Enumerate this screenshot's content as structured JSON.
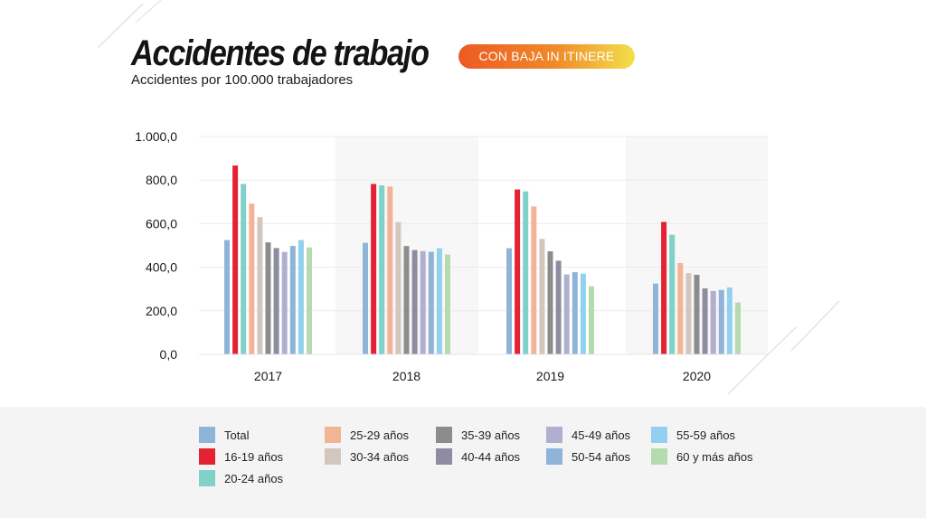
{
  "header": {
    "title": "Accidentes de trabajo",
    "badge": "CON BAJA IN ITINERE",
    "subtitle": "Accidentes por 100.000 trabajadores"
  },
  "colors": {
    "badge_gradient_start": "#ec5a24",
    "badge_gradient_end": "#f3e04a",
    "band": "#f7f7f7",
    "legend_background": "#f4f4f4"
  },
  "chart_data": {
    "type": "bar",
    "title": "",
    "xlabel": "",
    "ylabel": "",
    "ylim": [
      0,
      1000
    ],
    "yticks": [
      0,
      200,
      400,
      600,
      800,
      1000
    ],
    "ytick_labels": [
      "0,0",
      "200,0",
      "400,0",
      "600,0",
      "800,0",
      "1.000,0"
    ],
    "grid": true,
    "legend_position": "bottom",
    "categories": [
      "2017",
      "2018",
      "2019",
      "2020"
    ],
    "series": [
      {
        "name": "Total",
        "color": "#8fb4d8",
        "values": [
          525,
          512,
          487,
          325
        ]
      },
      {
        "name": "16-19 años",
        "color": "#e42332",
        "values": [
          867,
          782,
          757,
          608
        ]
      },
      {
        "name": "20-24 años",
        "color": "#7fd1c9",
        "values": [
          782,
          776,
          748,
          549
        ]
      },
      {
        "name": "25-29 años",
        "color": "#f3b397",
        "values": [
          692,
          770,
          679,
          419
        ]
      },
      {
        "name": "30-34 años",
        "color": "#d3c6bd",
        "values": [
          630,
          607,
          530,
          373
        ]
      },
      {
        "name": "35-39 años",
        "color": "#8c8c8c",
        "values": [
          514,
          497,
          473,
          365
        ]
      },
      {
        "name": "40-44 años",
        "color": "#8e8ca0",
        "values": [
          488,
          479,
          430,
          303
        ]
      },
      {
        "name": "45-49 años",
        "color": "#b0afcf",
        "values": [
          470,
          474,
          367,
          291
        ]
      },
      {
        "name": "50-54 años",
        "color": "#8fb4d8",
        "values": [
          498,
          471,
          377,
          296
        ]
      },
      {
        "name": "55-59 años",
        "color": "#92d1ee",
        "values": [
          525,
          487,
          371,
          307
        ]
      },
      {
        "name": "60 y más años",
        "color": "#b3dbae",
        "values": [
          491,
          458,
          313,
          238
        ]
      }
    ]
  }
}
